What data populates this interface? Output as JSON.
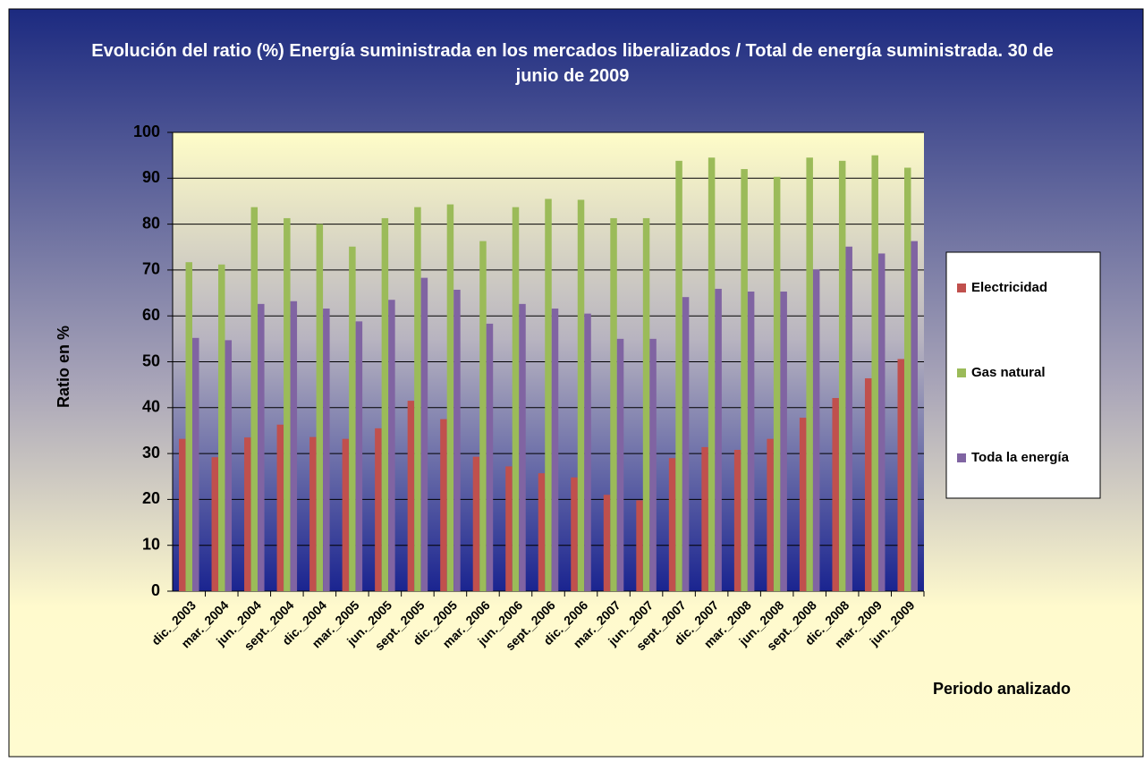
{
  "chart_data": {
    "type": "bar",
    "title": "Evolución del ratio (%) Energía suministrada en los mercados liberalizados / Total de energía suministrada.  30 de junio de 2009",
    "y_label": "Ratio en %",
    "x_label": "Periodo analizado",
    "categories": [
      "dic._2003",
      "mar._2004",
      "jun._2004",
      "sept._2004",
      "dic._2004",
      "mar._2005",
      "jun._2005",
      "sept._2005",
      "dic._2005",
      "mar._2006",
      "jun._2006",
      "sept._2006",
      "dic._2006",
      "mar._2007",
      "jun._2007",
      "sept._2007",
      "dic._2007",
      "mar._2008",
      "jun._2008",
      "sept._2008",
      "dic._2008",
      "mar._2009",
      "jun._2009"
    ],
    "series": [
      {
        "name": "Electricidad",
        "color": "#c0504d",
        "values": [
          33.2,
          29.2,
          33.5,
          36.3,
          33.6,
          33.2,
          35.5,
          41.5,
          37.5,
          29.3,
          27.2,
          25.7,
          24.8,
          21,
          19.8,
          29,
          31.4,
          30.8,
          33.2,
          37.8,
          42.1,
          46.4,
          50.6
        ]
      },
      {
        "name": "Gas natural",
        "color": "#9bbb59",
        "values": [
          71.7,
          71.2,
          83.7,
          81.3,
          80,
          75.1,
          81.3,
          83.7,
          84.3,
          76.3,
          83.7,
          85.5,
          85.3,
          81.3,
          81.3,
          93.8,
          94.5,
          92,
          90.3,
          94.5,
          93.8,
          95,
          92.3
        ]
      },
      {
        "name": "Toda la energía",
        "color": "#8064a2",
        "values": [
          55.2,
          54.7,
          62.6,
          63.2,
          61.6,
          58.8,
          63.5,
          68.3,
          65.7,
          58.3,
          62.6,
          61.6,
          60.5,
          55,
          55,
          64.1,
          65.9,
          65.3,
          65.3,
          70.1,
          75.1,
          73.6,
          76.3
        ]
      }
    ],
    "ylim": [
      0,
      100
    ],
    "yticks": [
      0,
      10,
      20,
      30,
      40,
      50,
      60,
      70,
      80,
      90,
      100
    ],
    "grid": true,
    "legend": "right"
  }
}
